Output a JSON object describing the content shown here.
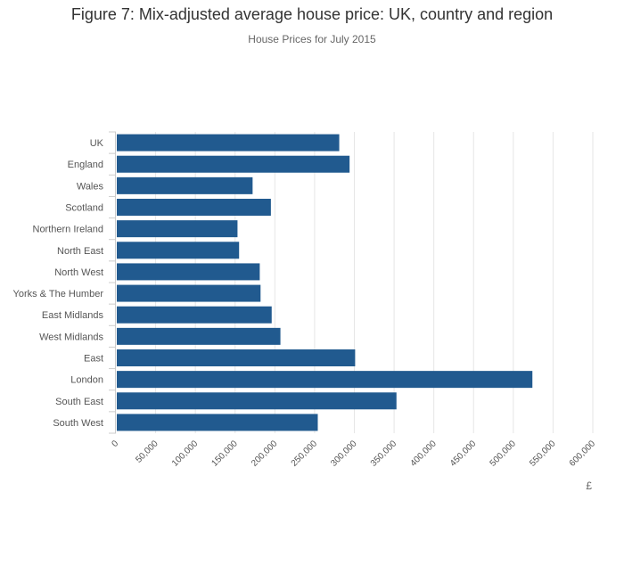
{
  "chart_data": {
    "type": "bar",
    "orientation": "horizontal",
    "title": "Figure 7: Mix-adjusted average house price: UK, country and region",
    "subtitle": "House Prices for July 2015",
    "xlabel": "£",
    "ylabel": "",
    "xlim": [
      0,
      600000
    ],
    "xticks": [
      "0",
      "50,000",
      "100,000",
      "150,000",
      "200,000",
      "250,000",
      "300,000",
      "350,000",
      "400,000",
      "450,000",
      "500,000",
      "550,000",
      "600,000"
    ],
    "grid": true,
    "bar_color": "#215a8f",
    "categories": [
      "UK",
      "England",
      "Wales",
      "Scotland",
      "Northern Ireland",
      "North East",
      "North West",
      "Yorks & The Humber",
      "East Midlands",
      "West Midlands",
      "East",
      "London",
      "South East",
      "South West"
    ],
    "values": [
      281000,
      294000,
      172000,
      195000,
      153000,
      155000,
      181000,
      182000,
      196000,
      207000,
      301000,
      524000,
      353000,
      254000
    ]
  }
}
